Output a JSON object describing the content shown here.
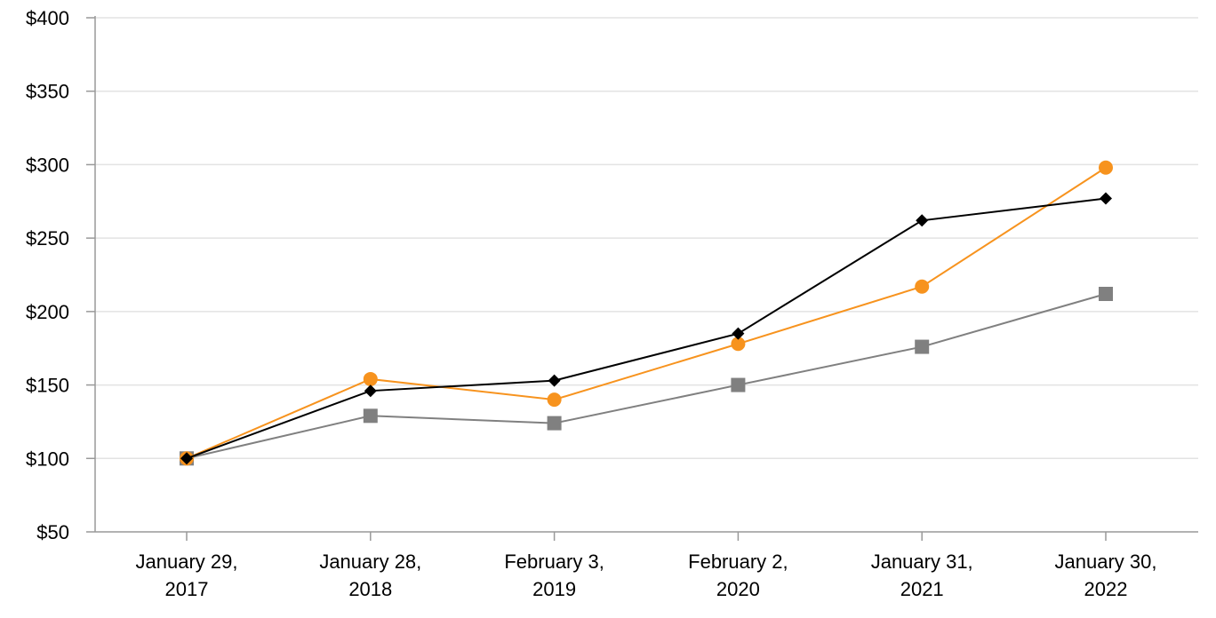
{
  "chart_data": {
    "type": "line",
    "title": "",
    "xlabel": "",
    "ylabel": "",
    "categories": [
      [
        "January 29,",
        "2017"
      ],
      [
        "January 28,",
        "2018"
      ],
      [
        "February 3,",
        "2019"
      ],
      [
        "February 2,",
        "2020"
      ],
      [
        "January 31,",
        "2021"
      ],
      [
        "January 30,",
        "2022"
      ]
    ],
    "ylim": [
      50,
      400
    ],
    "yticks": [
      50,
      100,
      150,
      200,
      250,
      300,
      350,
      400
    ],
    "ytick_labels": [
      "$50",
      "$100",
      "$150",
      "$200",
      "$250",
      "$300",
      "$350",
      "$400"
    ],
    "grid": true,
    "legend": "none",
    "series": [
      {
        "color": "#f7931e",
        "marker": "circle",
        "values": [
          100,
          154,
          140,
          178,
          217,
          298
        ]
      },
      {
        "color": "#000000",
        "marker": "diamond",
        "values": [
          100,
          146,
          153,
          185,
          262,
          277
        ]
      },
      {
        "color": "#808080",
        "marker": "square",
        "values": [
          100,
          129,
          124,
          150,
          176,
          212
        ]
      }
    ]
  }
}
